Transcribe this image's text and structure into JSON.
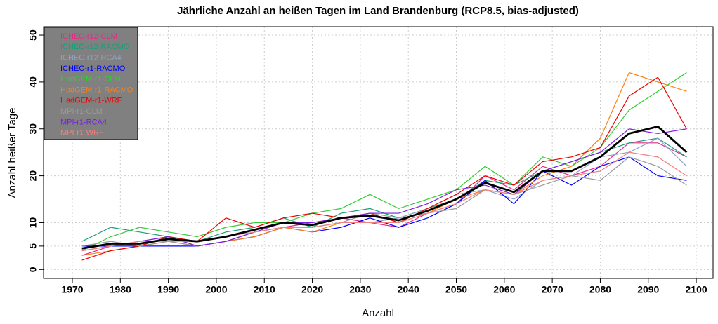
{
  "chart_data": {
    "type": "line",
    "title": "Jährliche Anzahl an heißen Tagen im Land Brandenburg (RCP8.5, bias-adjusted)",
    "xlabel": "Anzahl",
    "ylabel": "Anzahl heißer Tage",
    "x": [
      1972,
      1978,
      1984,
      1990,
      1996,
      2002,
      2008,
      2014,
      2020,
      2026,
      2032,
      2038,
      2044,
      2050,
      2056,
      2062,
      2068,
      2074,
      2080,
      2086,
      2092,
      2098
    ],
    "series": [
      {
        "name": "ICHEC-r12-CLM",
        "color": "#e7298a",
        "values": [
          3,
          5,
          6,
          7,
          5,
          6,
          8,
          9,
          10,
          11,
          10,
          9,
          12,
          14,
          20,
          17,
          22,
          20,
          22,
          27,
          27,
          24
        ]
      },
      {
        "name": "ICHEC-r12-RACMO",
        "color": "#1b9e77",
        "values": [
          6,
          9,
          8,
          7,
          6,
          8,
          9,
          11,
          9,
          12,
          13,
          11,
          13,
          15,
          19,
          18,
          21,
          23,
          25,
          27,
          28,
          24
        ]
      },
      {
        "name": "ICHEC-r12-RCA4",
        "color": "#8da0cb",
        "values": [
          5,
          6,
          5,
          6,
          5,
          6,
          8,
          9,
          9,
          10,
          10,
          11,
          13,
          16,
          17,
          15,
          19,
          20,
          24,
          25,
          28,
          22
        ]
      },
      {
        "name": "ICHEC-r1-RACMO",
        "color": "#0000ff",
        "values": [
          5,
          5,
          5,
          5,
          5,
          6,
          7,
          9,
          8,
          9,
          11,
          9,
          11,
          14,
          19,
          14,
          21,
          18,
          22,
          24,
          20,
          19
        ]
      },
      {
        "name": "HadGEM-r1-CLM",
        "color": "#33cc33",
        "values": [
          4,
          7,
          9,
          8,
          7,
          9,
          10,
          10,
          12,
          13,
          16,
          13,
          15,
          17,
          22,
          18,
          24,
          22,
          26,
          34,
          38,
          42
        ]
      },
      {
        "name": "HadGEM-r1-RACMO",
        "color": "#ff7f0e",
        "values": [
          3,
          4,
          5,
          6,
          5,
          6,
          7,
          9,
          8,
          10,
          10,
          10,
          12,
          15,
          17,
          16,
          20,
          22,
          28,
          42,
          40,
          38
        ]
      },
      {
        "name": "HadGEM-r1-WRF",
        "color": "#ee0000",
        "values": [
          2,
          4,
          5,
          7,
          6,
          11,
          9,
          11,
          12,
          11,
          12,
          10,
          13,
          16,
          20,
          18,
          23,
          24,
          26,
          37,
          41,
          30
        ]
      },
      {
        "name": "MPI-r1-CLM",
        "color": "#999999",
        "values": [
          5,
          6,
          5,
          6,
          5,
          6,
          8,
          9,
          9,
          10,
          12,
          11,
          12,
          13,
          17,
          16,
          18,
          20,
          19,
          24,
          22,
          18
        ]
      },
      {
        "name": "MPI-r1-RCA4",
        "color": "#7b1fe0",
        "values": [
          4,
          5,
          6,
          7,
          5,
          6,
          8,
          10,
          10,
          11,
          12,
          12,
          14,
          17,
          18,
          16,
          21,
          23,
          25,
          30,
          29,
          30
        ]
      },
      {
        "name": "MPI-r1-WRF",
        "color": "#f08080",
        "values": [
          4,
          5,
          6,
          6,
          6,
          7,
          8,
          9,
          9,
          10,
          10,
          10,
          12,
          14,
          17,
          16,
          19,
          20,
          21,
          25,
          24,
          20
        ]
      }
    ],
    "mean": {
      "color": "#000000",
      "values": [
        4.5,
        5.5,
        5.5,
        6.5,
        6,
        7,
        8.5,
        10,
        9.5,
        11,
        11.5,
        10.5,
        12.5,
        15,
        18.5,
        16.5,
        21,
        21,
        24,
        29,
        30.5,
        25
      ]
    },
    "xlim": [
      1964,
      2103.5
    ],
    "ylim": [
      -1.9,
      51.8
    ],
    "xticks": [
      1970,
      1980,
      1990,
      2000,
      2010,
      2020,
      2030,
      2040,
      2050,
      2060,
      2070,
      2080,
      2090,
      2100
    ],
    "yticks": [
      0,
      5,
      10,
      20,
      30,
      40,
      50
    ],
    "grid": true,
    "legend": "top-left",
    "legend_background": "#808080"
  }
}
